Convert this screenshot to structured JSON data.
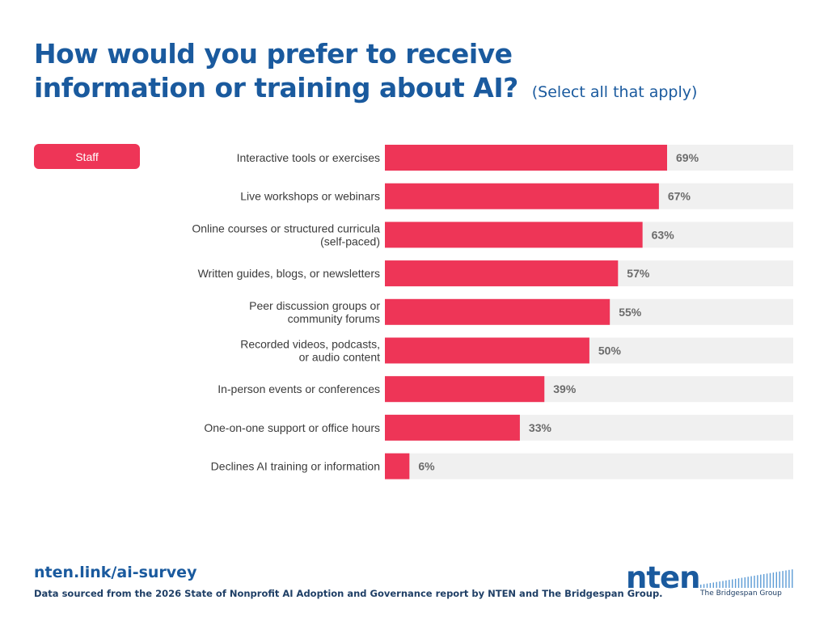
{
  "header": {
    "title_line1": "How would you prefer to receive",
    "title_line2": "information or training about AI?",
    "subtitle": "(Select all that apply)"
  },
  "legend": {
    "label": "Staff"
  },
  "colors": {
    "bar": "#ee3557",
    "track": "#f0f0f0",
    "title": "#1a5a9e",
    "value_text": "#6b6b6b"
  },
  "chart_data": {
    "type": "bar",
    "orientation": "horizontal",
    "title": "How would you prefer to receive information or training about AI?",
    "subtitle": "(Select all that apply)",
    "xlim": [
      0,
      100
    ],
    "unit": "%",
    "legend": {
      "position": "top-left"
    },
    "series": [
      {
        "name": "Staff",
        "values": [
          69,
          67,
          63,
          57,
          55,
          50,
          39,
          33,
          6
        ]
      }
    ],
    "categories": [
      [
        "Interactive tools or exercises"
      ],
      [
        "Live workshops or webinars"
      ],
      [
        "Online courses or structured curricula",
        "(self-paced)"
      ],
      [
        "Written guides, blogs, or newsletters"
      ],
      [
        "Peer discussion groups or",
        "community forums"
      ],
      [
        "Recorded videos, podcasts,",
        "or audio content"
      ],
      [
        "In-person events or conferences"
      ],
      [
        "One-on-one support or office hours"
      ],
      [
        "Declines AI training or information"
      ]
    ],
    "value_labels": [
      "69%",
      "67%",
      "63%",
      "57%",
      "55%",
      "50%",
      "39%",
      "33%",
      "6%"
    ]
  },
  "footer": {
    "url": "nten.link/ai-survey",
    "source": "Data sourced from the 2026 State of Nonprofit AI Adoption and Governance report by NTEN and The Bridgespan Group.",
    "logo_nten": "nten",
    "logo_bridgespan": "The Bridgespan Group"
  }
}
